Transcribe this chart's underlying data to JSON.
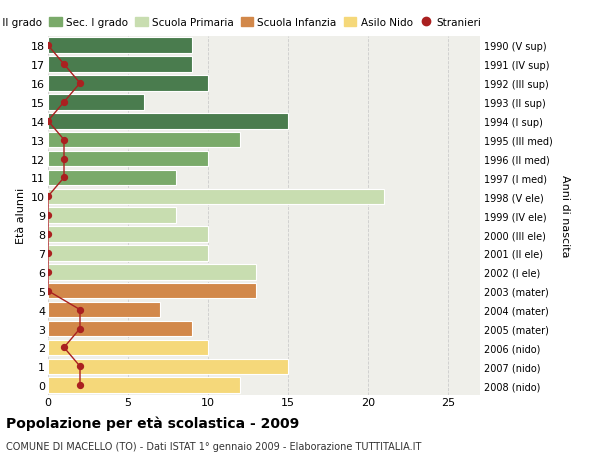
{
  "ages": [
    18,
    17,
    16,
    15,
    14,
    13,
    12,
    11,
    10,
    9,
    8,
    7,
    6,
    5,
    4,
    3,
    2,
    1,
    0
  ],
  "right_labels": [
    "1990 (V sup)",
    "1991 (IV sup)",
    "1992 (III sup)",
    "1993 (II sup)",
    "1994 (I sup)",
    "1995 (III med)",
    "1996 (II med)",
    "1997 (I med)",
    "1998 (V ele)",
    "1999 (IV ele)",
    "2000 (III ele)",
    "2001 (II ele)",
    "2002 (I ele)",
    "2003 (mater)",
    "2004 (mater)",
    "2005 (mater)",
    "2006 (nido)",
    "2007 (nido)",
    "2008 (nido)"
  ],
  "bar_values": [
    9,
    9,
    10,
    6,
    15,
    12,
    10,
    8,
    21,
    8,
    10,
    10,
    13,
    13,
    7,
    9,
    10,
    15,
    12
  ],
  "bar_colors": [
    "#4a7c4e",
    "#4a7c4e",
    "#4a7c4e",
    "#4a7c4e",
    "#4a7c4e",
    "#7aaa6a",
    "#7aaa6a",
    "#7aaa6a",
    "#c8ddb0",
    "#c8ddb0",
    "#c8ddb0",
    "#c8ddb0",
    "#c8ddb0",
    "#d2884a",
    "#d2884a",
    "#d2884a",
    "#f5d87a",
    "#f5d87a",
    "#f5d87a"
  ],
  "stranieri_x": [
    0,
    1,
    2,
    1,
    0,
    1,
    1,
    1,
    0,
    0,
    0,
    0,
    0,
    0,
    2,
    2,
    1,
    2,
    2
  ],
  "stranieri_color": "#aa2020",
  "legend_labels": [
    "Sec. II grado",
    "Sec. I grado",
    "Scuola Primaria",
    "Scuola Infanzia",
    "Asilo Nido",
    "Stranieri"
  ],
  "legend_colors": [
    "#4a7c4e",
    "#7aaa6a",
    "#c8ddb0",
    "#d2884a",
    "#f5d87a",
    "#aa2020"
  ],
  "ylabel": "Età alunni",
  "right_ylabel": "Anni di nascita",
  "title": "Popolazione per età scolastica - 2009",
  "subtitle": "COMUNE DI MACELLO (TO) - Dati ISTAT 1° gennaio 2009 - Elaborazione TUTTITALIA.IT",
  "xlim": [
    0,
    27
  ],
  "xticks": [
    0,
    5,
    10,
    15,
    20,
    25
  ],
  "background_color": "#ffffff",
  "bar_bg_color": "#efefea",
  "grid_color": "#cccccc"
}
